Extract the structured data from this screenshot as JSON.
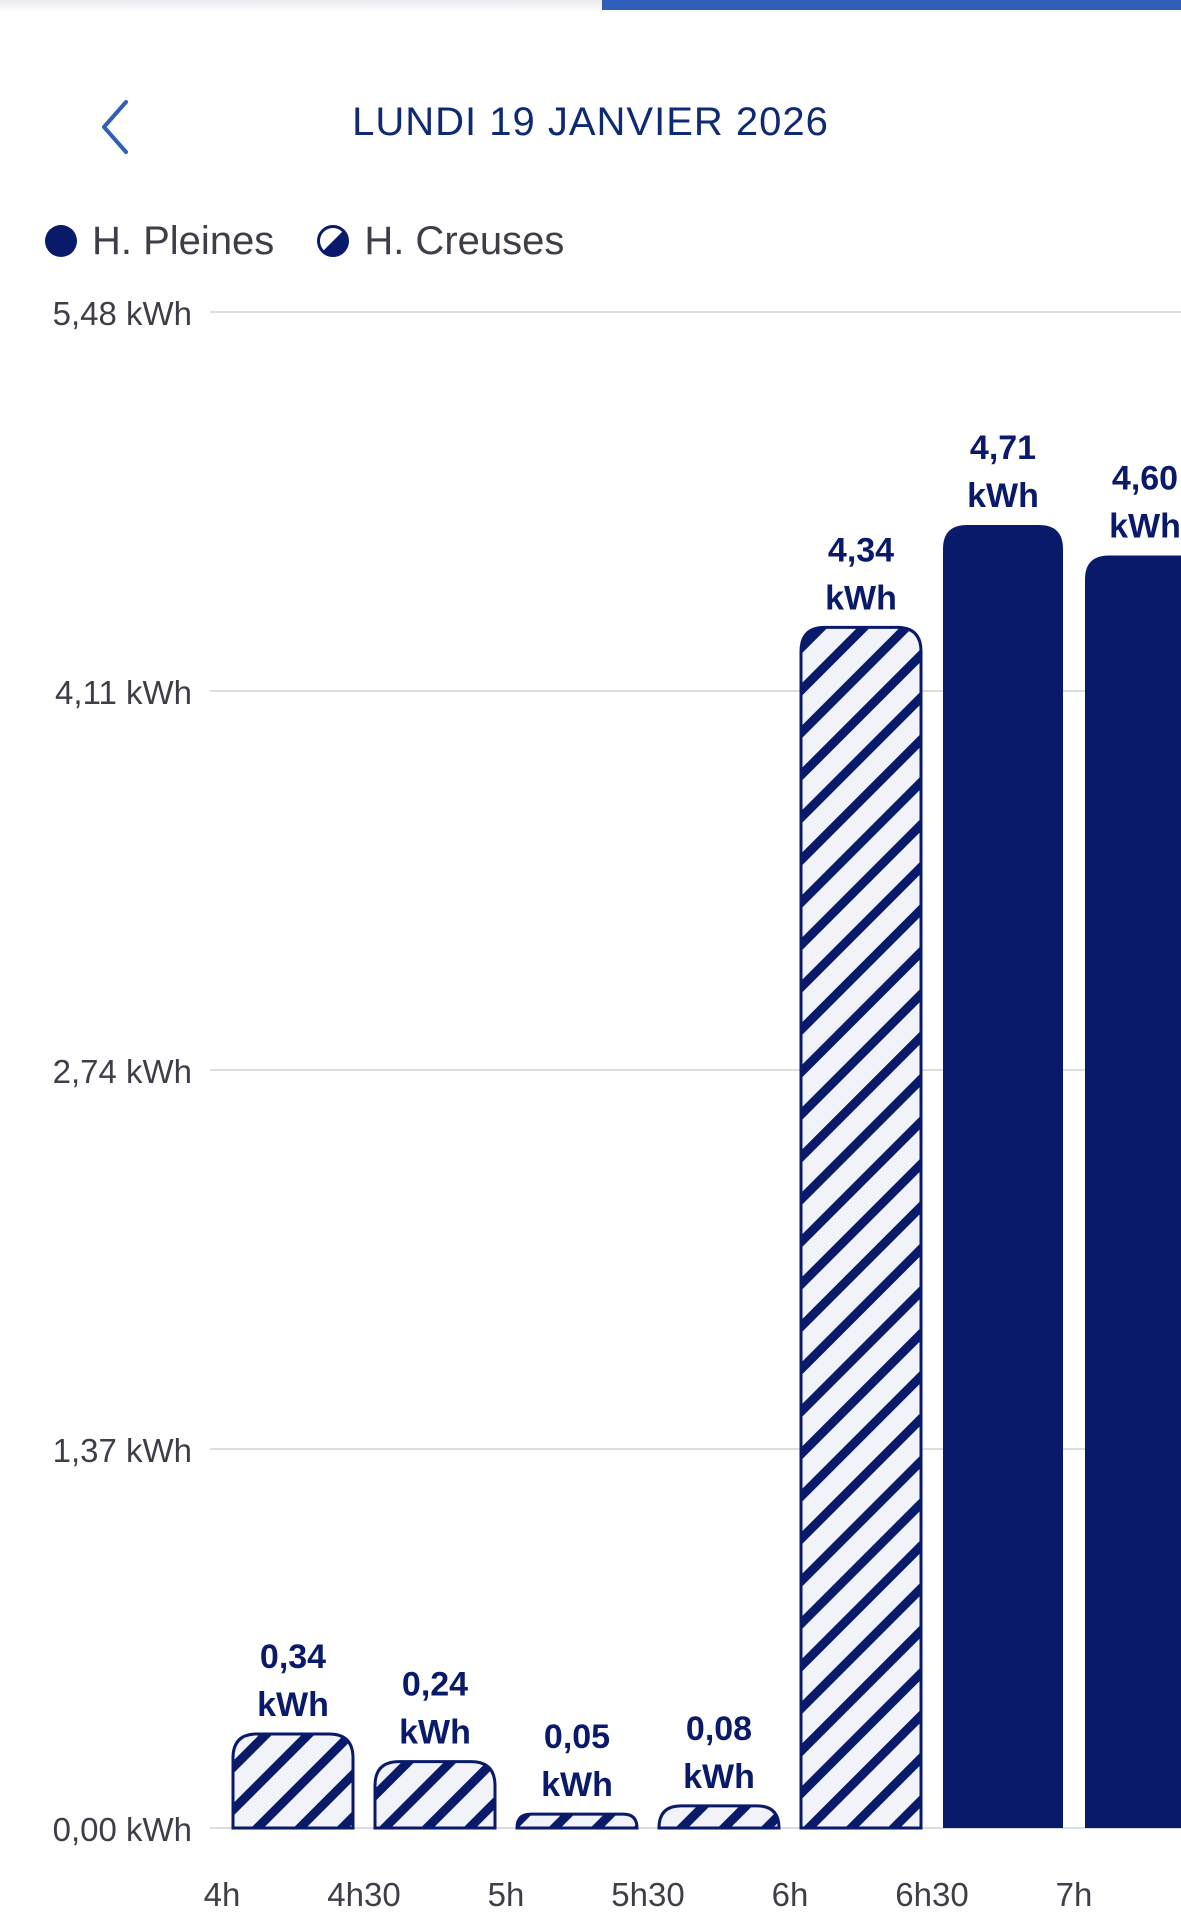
{
  "header": {
    "title": "LUNDI 19 JANVIER 2026"
  },
  "legend": {
    "items": [
      {
        "label": "H. Pleines",
        "style": "solid"
      },
      {
        "label": "H. Creuses",
        "style": "hatched"
      }
    ]
  },
  "colors": {
    "accent": "#2f5fb7",
    "bar": "#0a1a6b",
    "title": "#0e2a72",
    "axis_text": "#3e3e48",
    "grid": "#dadde3"
  },
  "chart_data": {
    "type": "bar",
    "unit": "kWh",
    "categories": [
      "4h",
      "4h30",
      "5h",
      "5h30",
      "6h",
      "6h30",
      "7h"
    ],
    "values": [
      0.34,
      0.24,
      0.05,
      0.08,
      4.34,
      4.71,
      4.6
    ],
    "tariff": [
      "H. Creuses",
      "H. Creuses",
      "H. Creuses",
      "H. Creuses",
      "H. Creuses",
      "H. Pleines",
      "H. Pleines"
    ],
    "value_labels": [
      [
        "0,34",
        "kWh"
      ],
      [
        "0,24",
        "kWh"
      ],
      [
        "0,05",
        "kWh"
      ],
      [
        "0,08",
        "kWh"
      ],
      [
        "4,34",
        "kWh"
      ],
      [
        "4,71",
        "kWh"
      ],
      [
        "4,60",
        "kWh"
      ]
    ],
    "yticks": [
      0,
      1.37,
      2.74,
      4.11,
      5.48
    ],
    "ytick_labels": [
      "0,00 kWh",
      "1,37 kWh",
      "2,74 kWh",
      "4,11 kWh",
      "5,48 kWh"
    ],
    "ylim": [
      0,
      5.48
    ],
    "grid": true,
    "legend_position": "top-left"
  }
}
